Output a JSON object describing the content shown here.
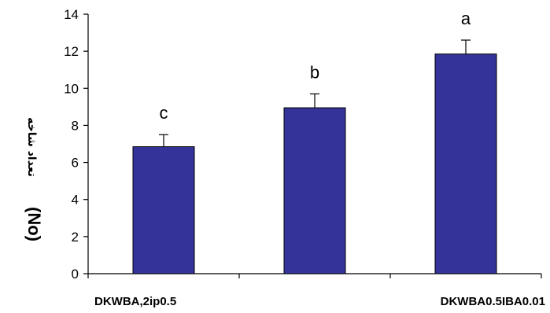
{
  "chart_data": {
    "type": "bar",
    "title": "",
    "ylabel": "تعداد شاخه (No)",
    "ylabel_parts": {
      "text": "تعداد شاخه",
      "unit": "(No)"
    },
    "ylim": [
      0,
      14
    ],
    "yticks": [
      "0",
      "2",
      "4",
      "6",
      "8",
      "10",
      "12",
      "14"
    ],
    "categories": [
      "DKWBA,2ip0.5",
      "",
      "DKWBA0.5IBA0.01"
    ],
    "values": [
      6.85,
      8.95,
      11.85
    ],
    "errors": [
      0.65,
      0.75,
      0.75
    ],
    "significance_letters": [
      "c",
      "b",
      "a"
    ],
    "bar_color": "#333399",
    "grid": false,
    "legend": "none"
  }
}
